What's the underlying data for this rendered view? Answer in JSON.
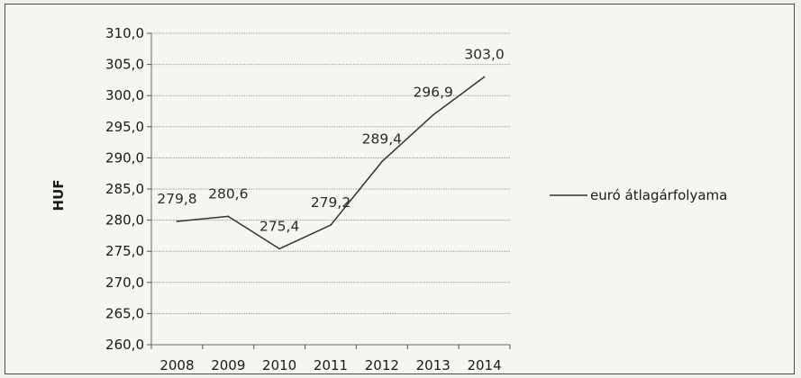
{
  "chart_data": {
    "type": "line",
    "x": [
      "2008",
      "2009",
      "2010",
      "2011",
      "2012",
      "2013",
      "2014"
    ],
    "series": [
      {
        "name": "euró átlagárfolyama",
        "values": [
          279.8,
          280.6,
          275.4,
          279.2,
          289.4,
          296.9,
          303.0
        ],
        "data_labels": [
          "279,8",
          "280,6",
          "275,4",
          "279,2",
          "289,4",
          "296,9",
          "303,0"
        ]
      }
    ],
    "ylabel": "HUF",
    "ylim": [
      260,
      310
    ],
    "yticks": [
      310,
      305,
      300,
      295,
      290,
      285,
      280,
      275,
      270,
      265,
      260
    ],
    "ytick_labels": [
      "310,0",
      "305,0",
      "300,0",
      "295,0",
      "290,0",
      "285,0",
      "280,0",
      "275,0",
      "270,0",
      "265,0",
      "260,0"
    ],
    "grid": true,
    "legend_position": "right",
    "line_color": "#333333",
    "grid_color": "#9a9a9a"
  }
}
